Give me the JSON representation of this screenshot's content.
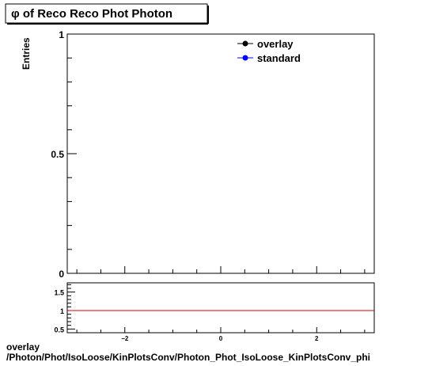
{
  "chart_data": {
    "type": "line",
    "title": "φ of Reco Reco Phot Photon",
    "ylabel": "Entries",
    "xlim": [
      -3.2,
      3.2
    ],
    "ylim": [
      0,
      1
    ],
    "y_ticks": [
      {
        "value": 0,
        "label": "0"
      },
      {
        "value": 0.5,
        "label": "0.5"
      },
      {
        "value": 1,
        "label": "1"
      }
    ],
    "legend": {
      "placement": "top-right",
      "entries": [
        {
          "name": "overlay",
          "color": "#000000"
        },
        {
          "name": "standard",
          "color": "#0000ff"
        }
      ]
    },
    "series": [
      {
        "name": "overlay",
        "color": "#000000",
        "x": [],
        "y": []
      },
      {
        "name": "standard",
        "color": "#0000ff",
        "x": [],
        "y": []
      }
    ],
    "ratio_panel": {
      "ylim": [
        0.4,
        1.75
      ],
      "y_ticks": [
        {
          "value": 0.5,
          "label": "0.5"
        },
        {
          "value": 1,
          "label": "1"
        },
        {
          "value": 1.5,
          "label": "1.5"
        }
      ],
      "x_ticks": [
        {
          "value": -2,
          "label": "−2"
        },
        {
          "value": 0,
          "label": "0"
        },
        {
          "value": 2,
          "label": "2"
        }
      ],
      "reference_line": {
        "value": 1,
        "color": "#cc0000"
      }
    }
  },
  "footer": {
    "line1": "overlay",
    "line2": "/Photon/Phot/IsoLoose/KinPlotsConv/Photon_Phot_IsoLoose_KinPlotsConv_phi"
  }
}
